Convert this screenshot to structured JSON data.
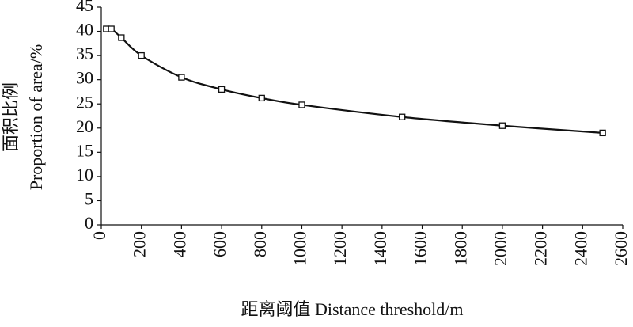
{
  "chart_data": {
    "type": "line",
    "x_label": "距离阈值 Distance threshold/m",
    "y_label": [
      "面积比例",
      "Proportion of area/%"
    ],
    "x": [
      25,
      50,
      100,
      200,
      400,
      600,
      800,
      1000,
      1500,
      2000,
      2500
    ],
    "series": [
      {
        "name": "Proportion of area",
        "color": "#111111",
        "values": [
          40.5,
          40.5,
          38.7,
          35,
          30.5,
          28,
          26.2,
          24.8,
          22.3,
          20.5,
          19
        ]
      }
    ],
    "xlim": [
      0,
      2600
    ],
    "xticks": [
      0,
      200,
      400,
      600,
      800,
      1000,
      1200,
      1400,
      1600,
      1800,
      2000,
      2200,
      2400,
      2600
    ],
    "ylim": [
      0,
      45
    ],
    "yticks": [
      0,
      5,
      10,
      15,
      20,
      25,
      30,
      35,
      40,
      45
    ],
    "grid": false
  }
}
